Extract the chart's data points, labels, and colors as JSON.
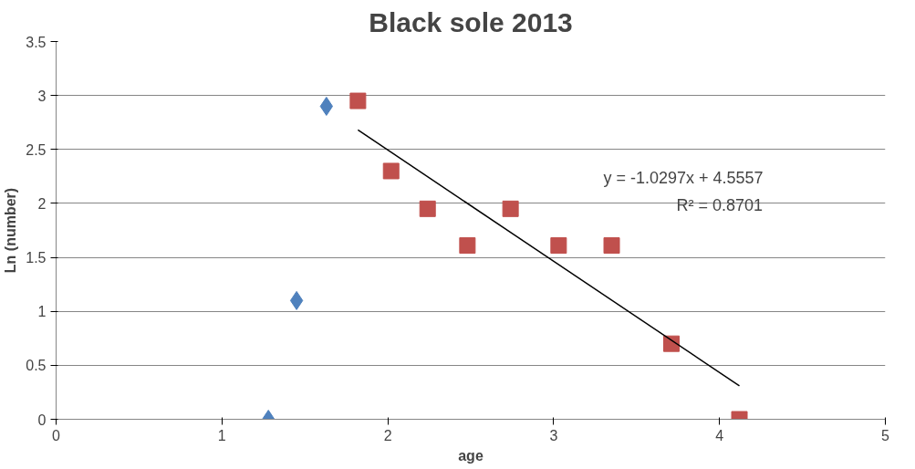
{
  "chart_data": {
    "type": "scatter",
    "title": "Black sole 2013",
    "xlabel": "age",
    "ylabel": "Ln (number)",
    "xlim": [
      0,
      5
    ],
    "xticks": [
      0,
      1,
      2,
      3,
      4,
      5
    ],
    "ylim": [
      0,
      3.5
    ],
    "yticks": [
      0,
      0.5,
      1,
      1.5,
      2,
      2.5,
      3,
      3.5
    ],
    "grid": "y",
    "series": [
      {
        "marker": "diamond",
        "color": "#4f81bd",
        "x": [
          1.28,
          1.45,
          1.63
        ],
        "values": [
          0,
          1.1,
          2.9
        ]
      },
      {
        "marker": "square",
        "color": "#c0504d",
        "x": [
          1.82,
          2.02,
          2.24,
          2.48,
          2.74,
          3.03,
          3.35,
          3.71,
          4.12
        ],
        "values": [
          2.95,
          2.3,
          1.95,
          1.61,
          1.95,
          1.61,
          1.61,
          0.7,
          0
        ]
      },
      {
        "type": "line",
        "line_style": "solid",
        "color": "#000000",
        "x": [
          1.82,
          4.12
        ],
        "values": [
          2.68,
          0.31
        ]
      }
    ],
    "annotations": [
      "y = -1.0297x + 4.5557",
      "R² = 0.8701"
    ]
  }
}
